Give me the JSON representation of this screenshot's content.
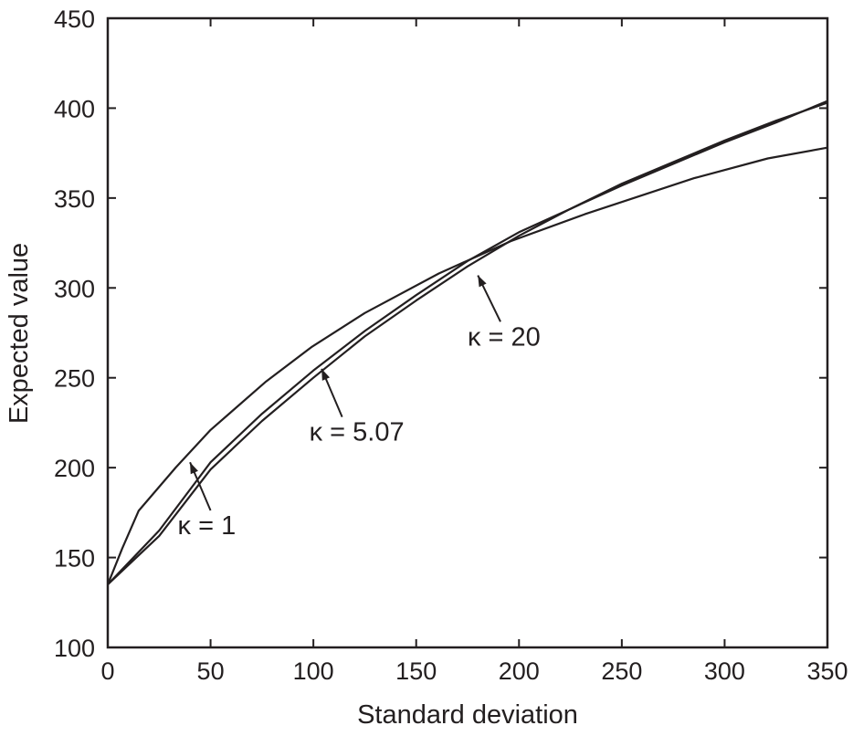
{
  "chart_data": {
    "type": "line",
    "title": "",
    "xlabel": "Standard deviation",
    "ylabel": "Expected value",
    "xlim": [
      0,
      350
    ],
    "ylim": [
      100,
      450
    ],
    "xticks": [
      0,
      50,
      100,
      150,
      200,
      250,
      300,
      350
    ],
    "yticks": [
      100,
      150,
      200,
      250,
      300,
      350,
      400,
      450
    ],
    "grid": false,
    "legend": "none",
    "series": [
      {
        "name": "κ = 1",
        "x": [
          0,
          7,
          15,
          33,
          50,
          77,
          99,
          125,
          161,
          196,
          232,
          285,
          321,
          350
        ],
        "y": [
          135,
          155,
          176,
          200,
          221,
          248,
          267,
          286,
          308,
          326,
          341,
          361,
          372,
          378
        ]
      },
      {
        "name": "κ = 5.07",
        "x": [
          0,
          25,
          50,
          75,
          100,
          125,
          150,
          175,
          200,
          225,
          250,
          275,
          300,
          325,
          350
        ],
        "y": [
          135,
          165,
          203,
          230,
          254,
          276,
          296,
          315,
          331,
          344,
          357,
          369,
          381,
          392,
          404
        ]
      },
      {
        "name": "κ = 20",
        "x": [
          0,
          25,
          50,
          75,
          100,
          125,
          150,
          175,
          200,
          225,
          250,
          275,
          300,
          325,
          350
        ],
        "y": [
          135,
          162,
          199,
          226,
          250,
          273,
          293,
          312,
          329,
          344,
          358,
          370,
          382,
          393,
          403
        ]
      }
    ],
    "annotations": [
      {
        "text": "κ = 1",
        "label_x": 34,
        "label_y": 163,
        "tip_x": 40,
        "tip_y": 203
      },
      {
        "text": "κ = 5.07",
        "label_x": 98,
        "label_y": 215,
        "tip_x": 104,
        "tip_y": 255
      },
      {
        "text": "κ = 20",
        "label_x": 175,
        "label_y": 268,
        "tip_x": 180,
        "tip_y": 307
      }
    ]
  }
}
